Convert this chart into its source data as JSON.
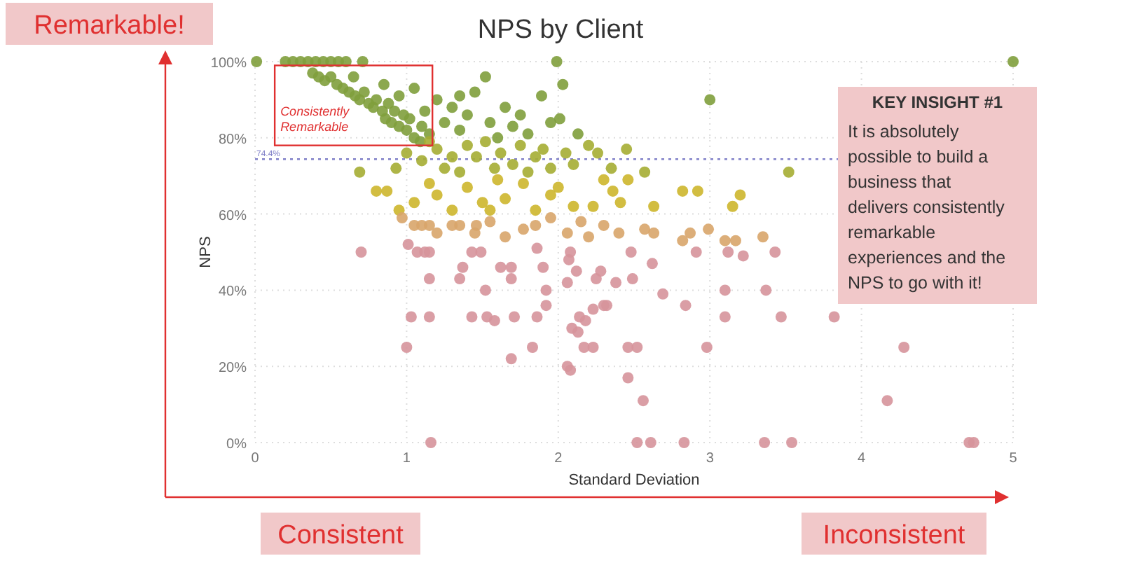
{
  "chart_data": {
    "type": "scatter",
    "title": "NPS by Client",
    "xlabel": "Standard Deviation",
    "ylabel": "NPS",
    "xlim": [
      0,
      5
    ],
    "xticks": [
      0,
      1,
      2,
      3,
      4,
      5
    ],
    "ylim": [
      0,
      100
    ],
    "yticks": [
      {
        "value": 0,
        "label": "0%"
      },
      {
        "value": 20,
        "label": "20%"
      },
      {
        "value": 40,
        "label": "40%"
      },
      {
        "value": 60,
        "label": "60%"
      },
      {
        "value": 80,
        "label": "80%"
      },
      {
        "value": 100,
        "label": "100%"
      }
    ],
    "grid": true,
    "marker": "circle",
    "ref_lines": [
      {
        "axis": "y",
        "value": 74.4,
        "label": "74.4%",
        "color": "#8080c8",
        "line_style": "dotted"
      }
    ],
    "annotations": [
      "Remarkable!",
      "Consistently Remarkable",
      "KEY INSIGHT #1",
      "It is absolutely possible to build a business that delivers consistently remarkable experiences and the NPS to go with it!",
      "Consistent",
      "Inconsistent"
    ],
    "series": [
      {
        "color": "#7f9e3c",
        "x": [
          0.01,
          0.2,
          0.25,
          0.3,
          0.35,
          0.4,
          0.45,
          0.5,
          0.55,
          0.6,
          0.71,
          1.99,
          5,
          0.38,
          0.42,
          0.46,
          0.5,
          0.54,
          0.58,
          0.62,
          0.66,
          0.69,
          0.72,
          0.75,
          0.78,
          0.8,
          0.84,
          0.86,
          0.88,
          0.9,
          0.92,
          0.95,
          0.98,
          1.0,
          1.02,
          1.05,
          1.09,
          1.1,
          1.12,
          1.15,
          1.2,
          1.25,
          1.3,
          1.35,
          1.4,
          1.45,
          1.52,
          1.55,
          1.6,
          1.65,
          1.7,
          1.75,
          1.8,
          1.89,
          1.95,
          2.03,
          2.01,
          2.13,
          3.0,
          0.85,
          0.95,
          1.05,
          0.65,
          1.35
        ],
        "values": [
          100,
          100,
          100,
          100,
          100,
          100,
          100,
          100,
          100,
          100,
          100,
          100,
          100,
          97,
          96,
          95,
          96,
          94,
          93,
          92,
          91,
          90,
          92,
          89,
          88,
          90,
          87,
          85,
          89,
          84,
          87,
          83,
          86,
          82,
          85,
          80,
          79,
          83,
          87,
          81,
          90,
          84,
          88,
          82,
          86,
          92,
          96,
          84,
          80,
          88,
          83,
          86,
          81,
          91,
          84,
          94,
          85,
          81,
          90,
          94,
          91,
          93,
          96,
          91
        ]
      },
      {
        "color": "#a5ad33",
        "x": [
          0.69,
          0.93,
          1.0,
          1.1,
          1.2,
          1.25,
          1.3,
          1.4,
          1.46,
          1.52,
          1.58,
          1.62,
          1.7,
          1.75,
          1.8,
          1.85,
          1.9,
          1.95,
          2.05,
          2.1,
          2.2,
          2.26,
          2.35,
          2.57,
          2.45,
          3.52,
          1.15,
          1.35
        ],
        "values": [
          71,
          72,
          76,
          74,
          77,
          72,
          75,
          78,
          75,
          79,
          72,
          76,
          73,
          78,
          71,
          75,
          77,
          72,
          76,
          73,
          78,
          76,
          72,
          71,
          77,
          71,
          79,
          71
        ]
      },
      {
        "color": "#cdb62c",
        "x": [
          0.8,
          0.87,
          1.15,
          1.05,
          1.2,
          1.3,
          1.4,
          1.5,
          1.6,
          1.65,
          1.77,
          1.85,
          1.95,
          2.0,
          2.1,
          2.23,
          2.3,
          2.36,
          2.41,
          2.46,
          2.63,
          2.82,
          2.92,
          3.2,
          3.15,
          1.55,
          0.95
        ],
        "values": [
          66,
          66,
          68,
          63,
          65,
          61,
          67,
          63,
          69,
          64,
          68,
          61,
          65,
          67,
          62,
          62,
          69,
          66,
          63,
          69,
          62,
          66,
          66,
          65,
          62,
          61,
          61
        ]
      },
      {
        "color": "#d8a56a",
        "x": [
          0.97,
          1.05,
          1.1,
          1.15,
          1.2,
          1.3,
          1.35,
          1.46,
          1.45,
          1.55,
          1.65,
          1.77,
          1.85,
          1.95,
          2.06,
          2.15,
          2.2,
          2.3,
          2.4,
          2.57,
          2.63,
          2.82,
          2.87,
          2.99,
          3.1,
          3.17,
          3.35
        ],
        "values": [
          59,
          57,
          57,
          57,
          55,
          57,
          57,
          57,
          55,
          58,
          54,
          56,
          57,
          59,
          55,
          58,
          54,
          57,
          55,
          56,
          55,
          53,
          55,
          56,
          53,
          53,
          54
        ]
      },
      {
        "color": "#d6949b",
        "x": [
          0.7,
          1.01,
          1.07,
          1.12,
          1.15,
          1.15,
          1.0,
          1.03,
          1.15,
          1.16,
          1.43,
          1.49,
          1.35,
          1.37,
          1.52,
          1.43,
          1.53,
          1.58,
          1.62,
          1.69,
          1.69,
          1.69,
          1.71,
          1.83,
          1.86,
          1.92,
          1.92,
          1.9,
          1.86,
          2.08,
          2.07,
          2.12,
          2.06,
          2.06,
          2.08,
          2.09,
          2.13,
          2.14,
          2.18,
          2.17,
          2.23,
          2.23,
          2.25,
          2.28,
          2.3,
          2.32,
          2.38,
          2.46,
          2.46,
          2.48,
          2.49,
          2.52,
          2.52,
          2.56,
          2.61,
          2.62,
          2.69,
          2.83,
          2.84,
          2.91,
          2.98,
          3.1,
          3.1,
          3.12,
          3.22,
          3.36,
          3.37,
          3.43,
          3.47,
          3.54,
          3.82,
          4.17,
          4.28,
          4.71,
          4.74
        ],
        "values": [
          50,
          52,
          50,
          50,
          50,
          43,
          25,
          33,
          33,
          0,
          50,
          50,
          43,
          46,
          40,
          33,
          33,
          32,
          46,
          46,
          43,
          22,
          33,
          25,
          33,
          36,
          40,
          46,
          51,
          50,
          48,
          45,
          42,
          20,
          19,
          30,
          29,
          33,
          32,
          25,
          25,
          35,
          43,
          45,
          36,
          36,
          42,
          17,
          25,
          50,
          43,
          25,
          0,
          11,
          0,
          47,
          39,
          0,
          36,
          50,
          25,
          40,
          33,
          50,
          49,
          0,
          40,
          50,
          33,
          0,
          33,
          11,
          25,
          0,
          0
        ]
      }
    ]
  }
}
